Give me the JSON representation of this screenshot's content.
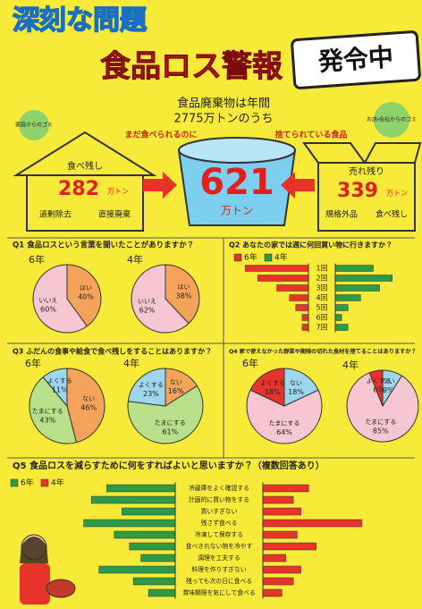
{
  "header": {
    "title_main": "深刻な問題",
    "title_alert": "食品ロス警報",
    "badge": "発令中"
  },
  "summary": {
    "line1": "食品廃棄物は年間",
    "line2": "2775万トンのうち",
    "left_arrow": "まだ食べられるのに",
    "right_arrow": "捨てられている食品",
    "total": 621,
    "total_unit": "万トン"
  },
  "household": {
    "label": "家庭からのゴミ",
    "items": [
      "食べ残し",
      "過剰除去",
      "直接廃棄"
    ],
    "amount": 282,
    "unit": "万トン"
  },
  "business": {
    "label": "お店・会社からのゴミ",
    "items": [
      "売れ残り",
      "規格外品",
      "食べ残し"
    ],
    "amount": 339,
    "unit": "万トン"
  },
  "chart_data": [
    {
      "type": "pie",
      "title": "Q1 食品ロスという言葉を聞いたことがありますか？",
      "categories": [
        "はい",
        "いいえ"
      ],
      "colors": [
        "#f5a35a",
        "#f7c6d3"
      ],
      "groups": [
        {
          "name": "6年",
          "values": [
            40,
            60
          ],
          "value_labels": [
            "40%",
            "60%"
          ]
        },
        {
          "name": "4年",
          "values": [
            38,
            62
          ],
          "value_labels": [
            "38%",
            "62%"
          ]
        }
      ]
    },
    {
      "type": "bar",
      "title": "Q2 あなたの家では週に何回買い物に行きますか？",
      "categories": [
        "1回",
        "2回",
        "3回",
        "4回",
        "5回",
        "6回",
        "7回"
      ],
      "series": [
        {
          "name": "6年",
          "color": "#e8332a",
          "values": [
            10,
            8,
            5,
            3,
            2,
            1,
            1
          ]
        },
        {
          "name": "4年",
          "color": "#2e9a45",
          "values": [
            6,
            9,
            7,
            4,
            2,
            1,
            2
          ]
        }
      ],
      "xlim": [
        0,
        12
      ]
    },
    {
      "type": "pie",
      "title": "Q3 ふだんの食事や給食で食べ残しをすることはありますか？",
      "categories": [
        "ない",
        "たまにする",
        "よくする"
      ],
      "colors": [
        "#f5a35a",
        "#b8e08a",
        "#9fd6ef"
      ],
      "groups": [
        {
          "name": "6年",
          "values": [
            46,
            43,
            11
          ],
          "value_labels": [
            "46%",
            "43%",
            "11%"
          ]
        },
        {
          "name": "4年",
          "values": [
            16,
            61,
            23
          ],
          "value_labels": [
            "16%",
            "61%",
            "23%"
          ]
        }
      ]
    },
    {
      "type": "pie",
      "title": "Q4 家で使えなかった野菜や期限の切れた食材を捨てることはありますか？",
      "categories": [
        "ない",
        "たまにする",
        "よくする"
      ],
      "colors": [
        "#9fd6ef",
        "#f7c6d3",
        "#e8332a"
      ],
      "groups": [
        {
          "name": "6年",
          "values": [
            18,
            64,
            18
          ],
          "value_labels": [
            "18%",
            "64%",
            "18%"
          ]
        },
        {
          "name": "4年",
          "values": [
            9,
            85,
            6
          ],
          "value_labels": [
            "9%",
            "85%",
            "6%"
          ]
        }
      ]
    },
    {
      "type": "bar",
      "title": "Q5 食品ロスを減らすために何をすればよいと思いますか？（複数回答あり）",
      "categories": [
        "冷蔵庫をよく確認する",
        "計画的に買い物をする",
        "買いすぎない",
        "残さず食べる",
        "冷凍して保存する",
        "食べきれない物を冷やす",
        "調理を工夫する",
        "料理を作りすぎない",
        "残っても次の日に食べる",
        "賞味期限を気にして食べる"
      ],
      "series": [
        {
          "name": "6年",
          "color": "#2e9a45",
          "values": [
            18,
            22,
            14,
            24,
            16,
            12,
            9,
            20,
            11,
            7
          ]
        },
        {
          "name": "4年",
          "color": "#e8332a",
          "values": [
            12,
            8,
            10,
            26,
            9,
            14,
            6,
            10,
            8,
            5
          ]
        }
      ],
      "xlim": [
        0,
        30
      ]
    }
  ]
}
